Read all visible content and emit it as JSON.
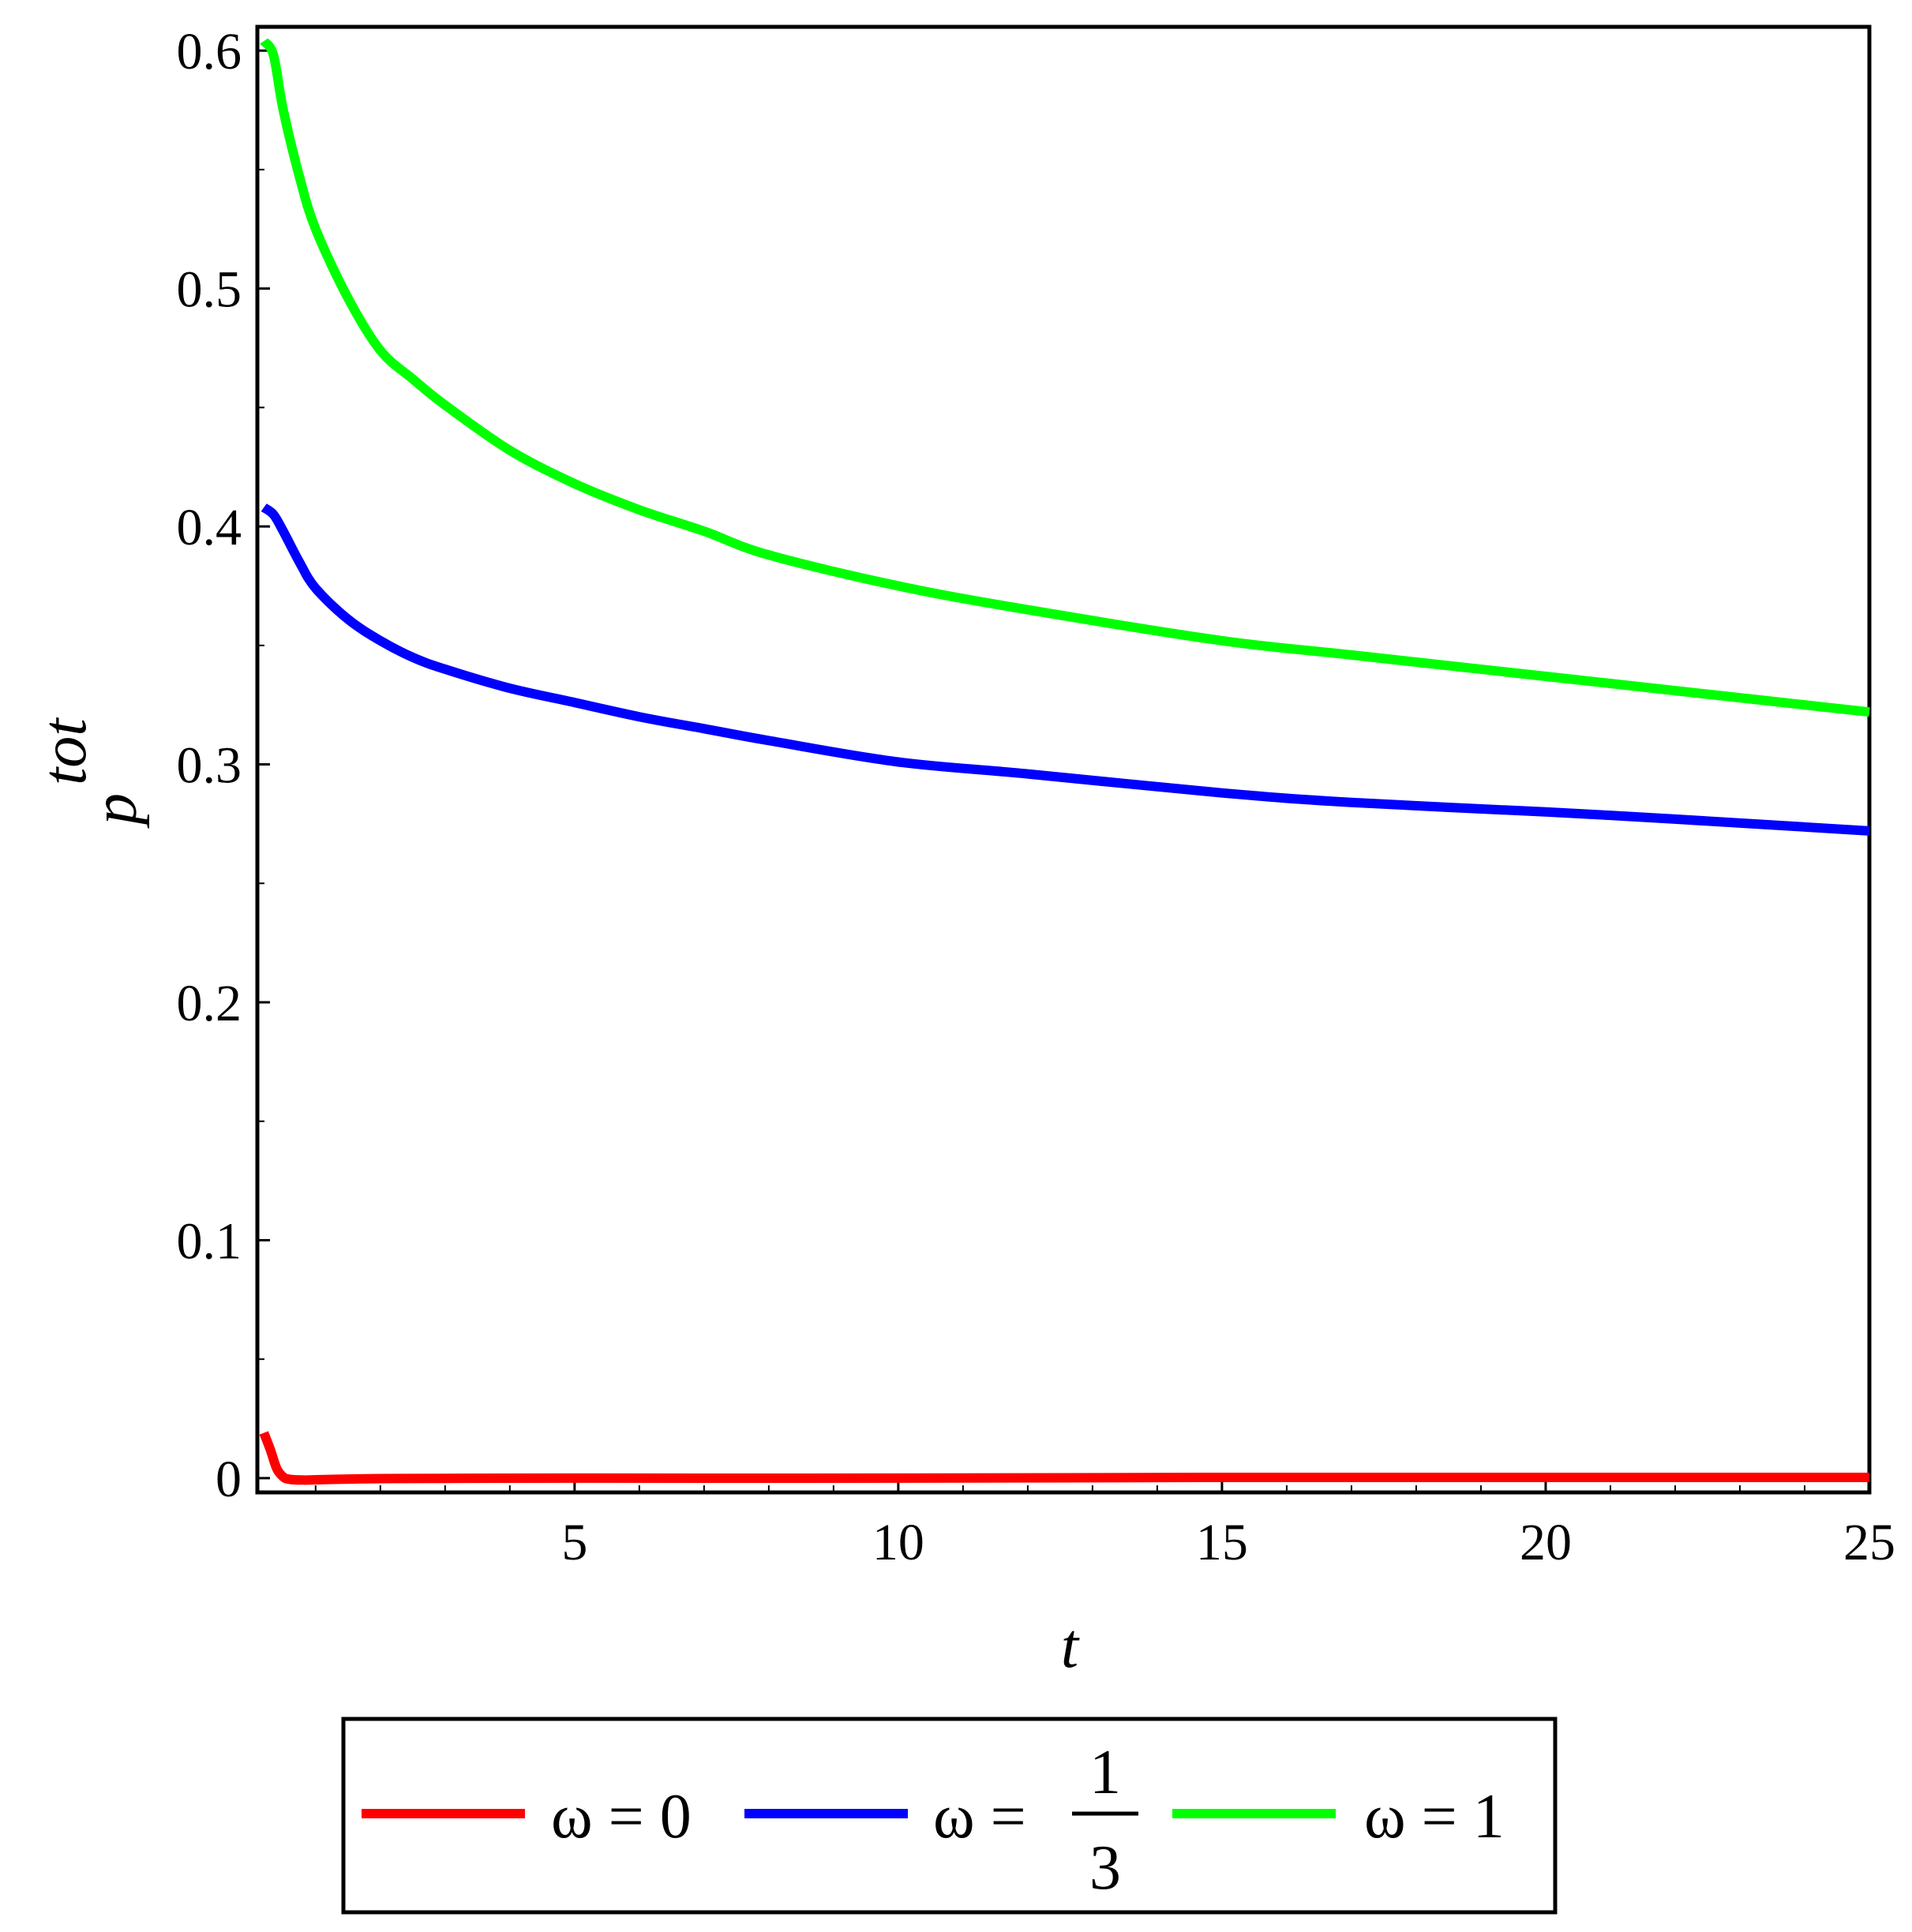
{
  "chart_data": {
    "type": "line",
    "title": "",
    "xlabel": "t",
    "ylabel": {
      "main": "p",
      "superscript": "tot"
    },
    "xlim": [
      0.1,
      25
    ],
    "ylim": [
      -0.006,
      0.61
    ],
    "x_ticks": [
      5,
      10,
      15,
      20,
      25
    ],
    "x_tick_labels": [
      "5",
      "10",
      "15",
      "20",
      "25"
    ],
    "y_ticks": [
      0,
      0.1,
      0.2,
      0.3,
      0.4,
      0.5,
      0.6
    ],
    "y_tick_labels": [
      "0",
      "0.1",
      "0.2",
      "0.3",
      "0.4",
      "0.5",
      "0.6"
    ],
    "grid": false,
    "legend_position": "bottom",
    "series": [
      {
        "name": "ω = 0",
        "color": "#ff0000",
        "x": [
          0.2,
          0.3,
          0.4,
          0.5,
          0.6,
          0.8,
          1.0,
          1.5,
          2,
          3,
          5,
          10,
          15,
          20,
          25
        ],
        "y": [
          0.019,
          0.012,
          0.004,
          0.0005,
          -0.0005,
          -0.0008,
          -0.0007,
          -0.0004,
          -0.0002,
          -0.0001,
          0.0,
          0.0,
          0.0003,
          0.0003,
          0.0003
        ]
      },
      {
        "name": "ω = 1/3",
        "label_parts": [
          "ω =",
          "1",
          "3"
        ],
        "color": "#0000ff",
        "x": [
          0.2,
          0.35,
          0.5,
          0.75,
          1.0,
          1.5,
          2,
          2.5,
          3,
          4,
          5,
          6,
          7,
          8,
          10,
          12,
          15,
          17,
          20,
          22,
          25
        ],
        "y": [
          0.408,
          0.405,
          0.398,
          0.385,
          0.374,
          0.361,
          0.352,
          0.345,
          0.34,
          0.332,
          0.326,
          0.32,
          0.315,
          0.31,
          0.301,
          0.296,
          0.288,
          0.284,
          0.28,
          0.277,
          0.272
        ]
      },
      {
        "name": "ω = 1",
        "color": "#00ff00",
        "x": [
          0.2,
          0.35,
          0.5,
          0.75,
          1.0,
          1.5,
          2,
          2.5,
          3,
          4,
          5,
          6,
          7,
          8,
          10,
          12,
          15,
          17,
          20,
          22,
          25
        ],
        "y": [
          0.604,
          0.598,
          0.575,
          0.547,
          0.525,
          0.496,
          0.474,
          0.462,
          0.451,
          0.432,
          0.418,
          0.407,
          0.398,
          0.388,
          0.375,
          0.365,
          0.352,
          0.346,
          0.337,
          0.331,
          0.322
        ]
      }
    ]
  }
}
